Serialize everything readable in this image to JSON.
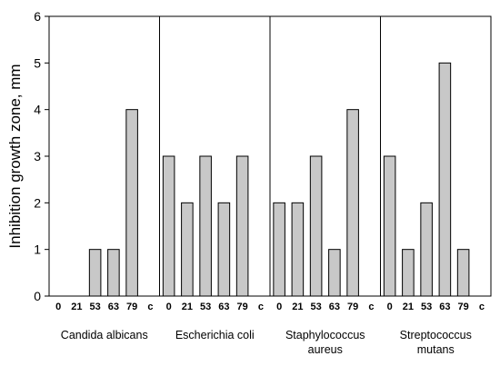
{
  "chart_data": {
    "type": "bar",
    "ylabel": "Inhibition growth zone, mm",
    "xlabel": "",
    "ylim": [
      0,
      6
    ],
    "yticks": [
      "0",
      "1",
      "2",
      "3",
      "4",
      "5",
      "6"
    ],
    "colors": {
      "bar_fill": "#c8c8c8",
      "bar_stroke": "#000000",
      "axis": "#000000"
    },
    "groups": [
      {
        "label_lines": [
          "Candida albicans"
        ],
        "categories": [
          "0",
          "21",
          "53",
          "63",
          "79",
          "c"
        ],
        "values": [
          0,
          0,
          1,
          1,
          4,
          0
        ]
      },
      {
        "label_lines": [
          "Escherichia coli"
        ],
        "categories": [
          "0",
          "21",
          "53",
          "63",
          "79",
          "c"
        ],
        "values": [
          3,
          2,
          3,
          2,
          3,
          0
        ]
      },
      {
        "label_lines": [
          "Staphylococcus",
          "aureus"
        ],
        "categories": [
          "0",
          "21",
          "53",
          "63",
          "79",
          "c"
        ],
        "values": [
          2,
          2,
          3,
          1,
          4,
          0
        ]
      },
      {
        "label_lines": [
          "Streptococcus",
          "mutans"
        ],
        "categories": [
          "0",
          "21",
          "53",
          "63",
          "79",
          "c"
        ],
        "values": [
          3,
          1,
          2,
          5,
          1,
          0
        ]
      }
    ]
  }
}
